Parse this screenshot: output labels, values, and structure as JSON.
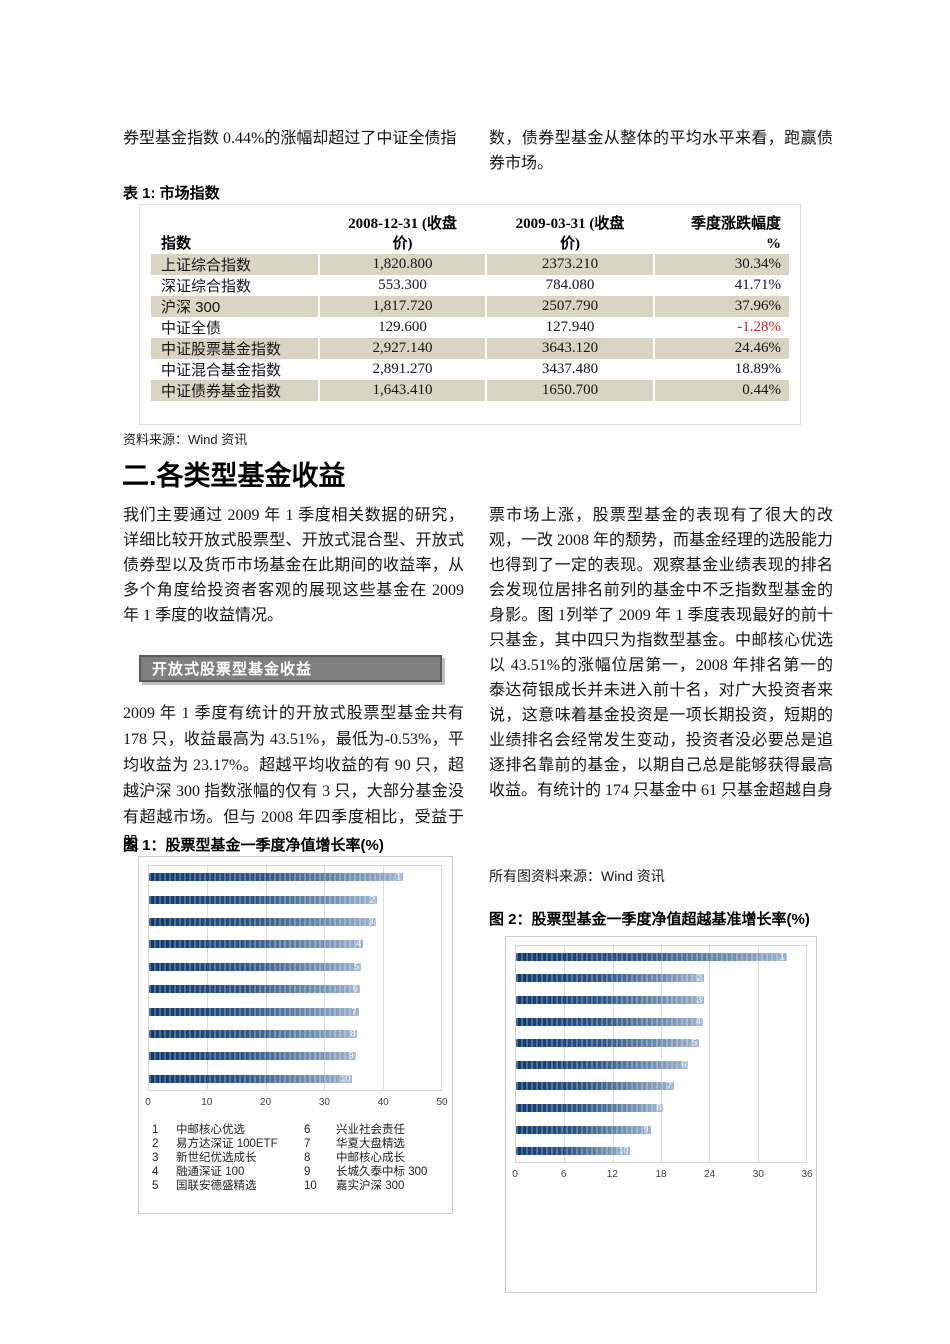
{
  "intro": {
    "left": "券型基金指数 0.44%的涨幅却超过了中证全债指",
    "right": "数，债券型基金从整体的平均水平来看，跑赢债券市场。"
  },
  "table1": {
    "title": "表 1: 市场指数",
    "headers": [
      "指数",
      "2008-12-31 (收盘\n价)",
      "2009-03-31 (收盘\n价)",
      "季度涨跌幅度\n%"
    ],
    "rows": [
      {
        "index": "上证综合指数",
        "close_2008": "1,820.800",
        "close_2009": "2373.210",
        "change": "30.34%",
        "shaded": true,
        "negative": false
      },
      {
        "index": "深证综合指数",
        "close_2008": "553.300",
        "close_2009": "784.080",
        "change": "41.71%",
        "shaded": false,
        "negative": false
      },
      {
        "index": "沪深 300",
        "close_2008": "1,817.720",
        "close_2009": "2507.790",
        "change": "37.96%",
        "shaded": true,
        "negative": false
      },
      {
        "index": "中证全债",
        "close_2008": "129.600",
        "close_2009": "127.940",
        "change": "-1.28%",
        "shaded": false,
        "negative": true
      },
      {
        "index": "中证股票基金指数",
        "close_2008": "2,927.140",
        "close_2009": "3643.120",
        "change": "24.46%",
        "shaded": true,
        "negative": false
      },
      {
        "index": "中证混合基金指数",
        "close_2008": "2,891.270",
        "close_2009": "3437.480",
        "change": "18.89%",
        "shaded": false,
        "negative": false
      },
      {
        "index": "中证债券基金指数",
        "close_2008": "1,643.410",
        "close_2009": "1650.700",
        "change": "0.44%",
        "shaded": true,
        "negative": false
      }
    ],
    "source": "资料来源：Wind 资讯"
  },
  "section2": {
    "heading": "二.各类型基金收益",
    "para_left_1": "我们主要通过 2009 年 1 季度相关数据的研究，详细比较开放式股票型、开放式混合型、开放式债券型以及货币市场基金在此期间的收益率，从多个角度给投资者客观的展现这些基金在 2009 年 1 季度的收益情况。",
    "subsection_title": "开放式股票型基金收益",
    "para_left_2": "2009 年 1 季度有统计的开放式股票型基金共有 178 只，收益最高为 43.51%，最低为-0.53%，平均收益为 23.17%。超越平均收益的有 90 只，超越沪深 300 指数涨幅的仅有 3 只，大部分基金没有超越市场。但与 2008 年四季度相比，受益于股",
    "para_right": "票市场上涨，股票型基金的表现有了很大的改观，一改 2008 年的颓势，而基金经理的选股能力也得到了一定的表现。观察基金业绩表现的排名会发现位居排名前列的基金中不乏指数型基金的身影。图 1列举了 2009 年 1 季度表现最好的前十只基金，其中四只为指数型基金。中邮核心优选以 43.51%的涨幅位居第一，2008 年排名第一的泰达荷银成长并未进入前十名，对广大投资者来说，这意味着基金投资是一项长期投资，短期的业绩排名会经常发生变动，投资者没必要总是追逐排名靠前的基金，以期自己总是能够获得最高收益。有统计的 174 只基金中 61 只基金超越自身",
    "figures_source": "所有图资料来源：Wind 资讯"
  },
  "chart_data": [
    {
      "type": "bar",
      "orientation": "horizontal",
      "title": "图 1：股票型基金一季度净值增长率(%)",
      "categories": [
        "1",
        "2",
        "3",
        "4",
        "5",
        "6",
        "7",
        "8",
        "9",
        "10"
      ],
      "values": [
        43.5,
        39.0,
        38.8,
        36.7,
        36.3,
        36.1,
        35.9,
        35.7,
        35.4,
        34.8
      ],
      "xlim": [
        0,
        50
      ],
      "xticks": [
        0,
        10,
        20,
        30,
        40,
        50
      ],
      "grid": true,
      "legend": [
        {
          "rank": "1",
          "name": "中邮核心优选"
        },
        {
          "rank": "2",
          "name": "易方达深证 100ETF"
        },
        {
          "rank": "3",
          "name": "新世纪优选成长"
        },
        {
          "rank": "4",
          "name": "融通深证 100"
        },
        {
          "rank": "5",
          "name": "国联安德盛精选"
        },
        {
          "rank": "6",
          "name": "兴业社会责任"
        },
        {
          "rank": "7",
          "name": "华夏大盘精选"
        },
        {
          "rank": "8",
          "name": "中邮核心成长"
        },
        {
          "rank": "9",
          "name": "长城久泰中标 300"
        },
        {
          "rank": "10",
          "name": "嘉实沪深 300"
        }
      ]
    },
    {
      "type": "bar",
      "orientation": "horizontal",
      "title": "图 2：股票型基金一季度净值超越基准增长率(%)",
      "categories": [
        "1",
        "2",
        "3",
        "4",
        "5",
        "6",
        "7",
        "8",
        "9",
        "10"
      ],
      "values": [
        33.6,
        23.3,
        23.3,
        23.2,
        22.7,
        21.4,
        19.6,
        18.3,
        16.7,
        14.2
      ],
      "xlim": [
        0,
        36
      ],
      "xticks": [
        0,
        6,
        12,
        18,
        24,
        30,
        36
      ],
      "grid": true,
      "legend": []
    }
  ],
  "colors": {
    "table_stripe": "#d9d5c2",
    "negative_red": "#c62828",
    "bar_gradient_start": "#0e3a6e",
    "bar_gradient_end": "#9db4cd",
    "subsection_bg": "#7f7f7f",
    "subsection_border": "#5a5a5a"
  }
}
